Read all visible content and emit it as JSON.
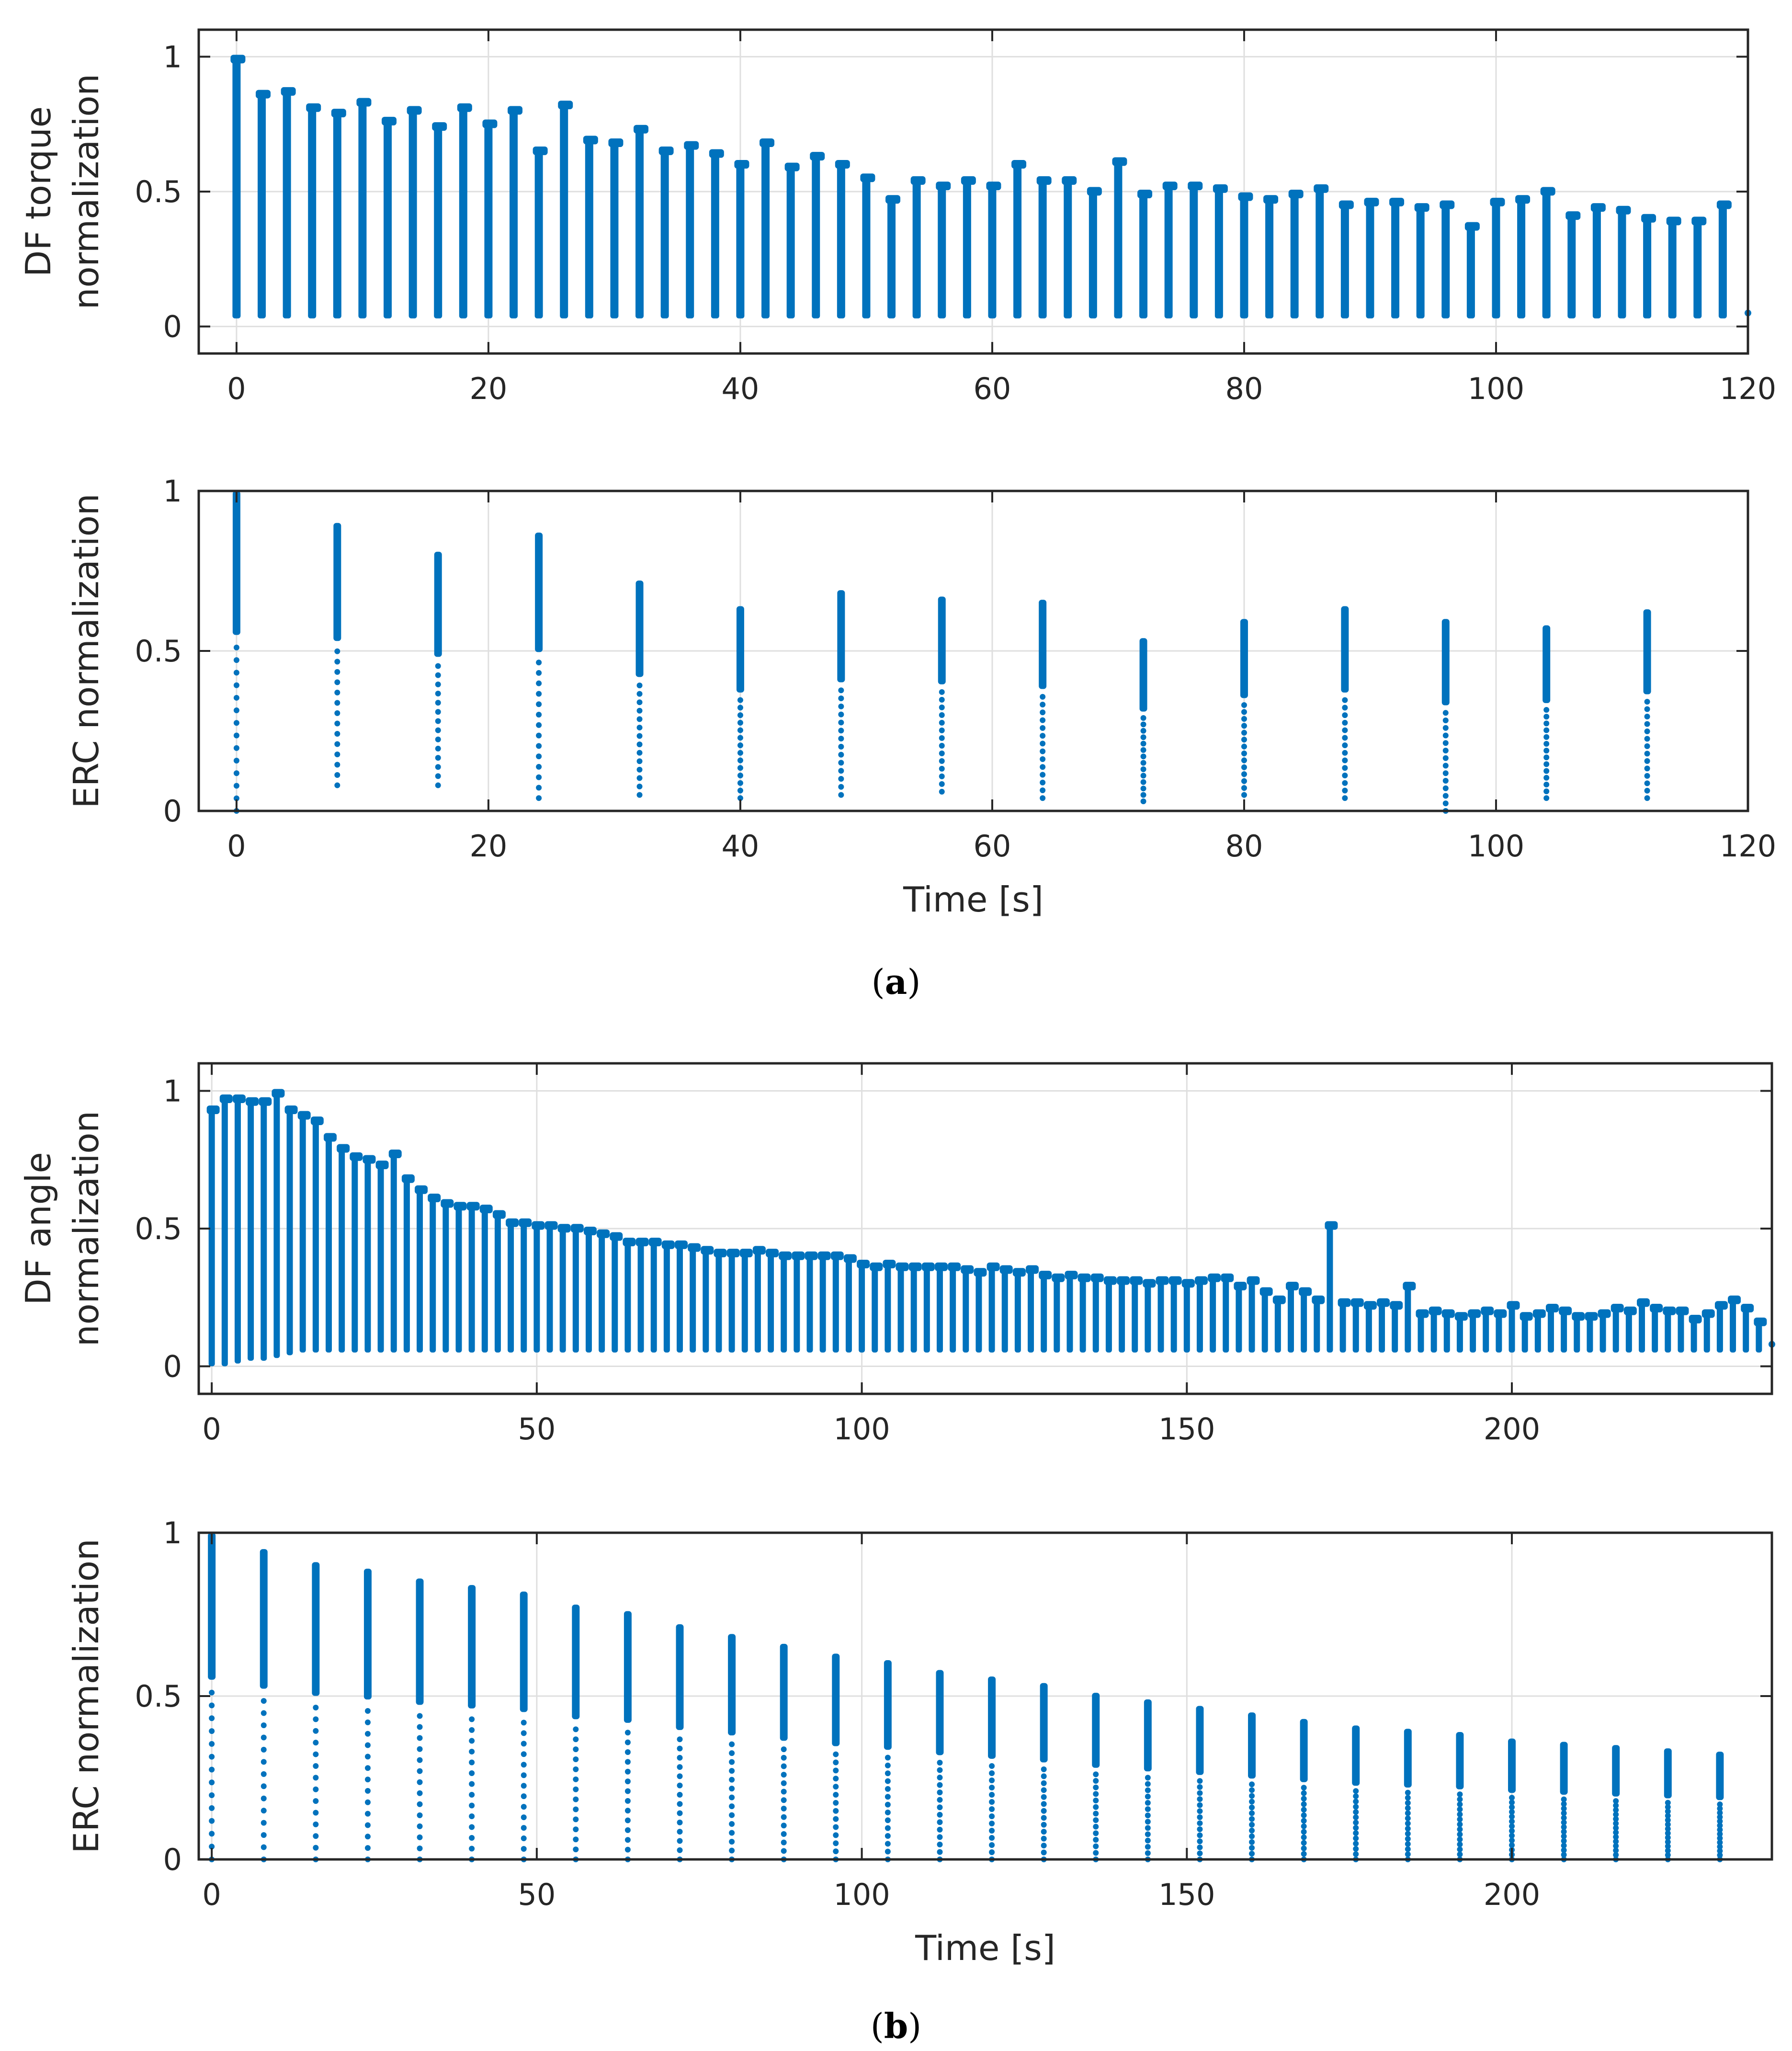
{
  "colors": {
    "series": "#0072BD",
    "grid": "#DFDFDF",
    "axis": "#262626"
  },
  "captions": {
    "a": {
      "open": "(",
      "letter": "a",
      "close": ")"
    },
    "b": {
      "open": "(",
      "letter": "b",
      "close": ")"
    }
  },
  "chart_data": [
    {
      "id": "a-top",
      "type": "scatter",
      "title": "",
      "xlabel": "",
      "ylabel_lines": [
        "DF torque",
        "normalization"
      ],
      "xlim": [
        -3,
        120
      ],
      "ylim": [
        -0.1,
        1.1
      ],
      "xticks": [
        0,
        20,
        40,
        60,
        80,
        100,
        120
      ],
      "yticks": [
        0,
        0.5,
        1
      ],
      "xtick_labels": [
        "0",
        "20",
        "40",
        "60",
        "80",
        "100",
        "120"
      ],
      "ytick_labels": [
        "0",
        "0.5",
        "1"
      ],
      "grid": true,
      "period": 2,
      "t0": 0,
      "low": 0.03,
      "peaks": [
        1.0,
        0.87,
        0.88,
        0.82,
        0.8,
        0.84,
        0.77,
        0.81,
        0.75,
        0.82,
        0.76,
        0.81,
        0.66,
        0.83,
        0.7,
        0.69,
        0.74,
        0.66,
        0.68,
        0.65,
        0.61,
        0.69,
        0.6,
        0.64,
        0.61,
        0.56,
        0.48,
        0.55,
        0.53,
        0.55,
        0.53,
        0.61,
        0.55,
        0.55,
        0.51,
        0.62,
        0.5,
        0.53,
        0.53,
        0.52,
        0.49,
        0.48,
        0.5,
        0.52,
        0.46,
        0.47,
        0.47,
        0.45,
        0.46,
        0.38,
        0.47,
        0.48,
        0.51,
        0.42,
        0.45,
        0.44,
        0.41,
        0.4,
        0.4,
        0.46
      ],
      "end_point": [
        120,
        0.05
      ]
    },
    {
      "id": "a-bottom",
      "type": "scatter",
      "title": "",
      "xlabel": "Time [s]",
      "ylabel_lines": [
        "ERC normalization"
      ],
      "xlim": [
        -3,
        120
      ],
      "ylim": [
        0,
        1
      ],
      "xticks": [
        0,
        20,
        40,
        60,
        80,
        100,
        120
      ],
      "yticks": [
        0,
        0.5,
        1
      ],
      "xtick_labels": [
        "0",
        "20",
        "40",
        "60",
        "80",
        "100",
        "120"
      ],
      "ytick_labels": [
        "0",
        "0.5",
        "1"
      ],
      "grid": true,
      "period": 8,
      "t0": 0,
      "peaks": [
        1.0,
        0.9,
        0.81,
        0.87,
        0.72,
        0.64,
        0.69,
        0.67,
        0.66,
        0.54,
        0.6,
        0.64,
        0.6,
        0.58,
        0.63
      ],
      "lows": [
        0.0,
        0.08,
        0.08,
        0.04,
        0.05,
        0.04,
        0.05,
        0.06,
        0.04,
        0.03,
        0.05,
        0.04,
        0.0,
        0.04,
        0.04
      ]
    },
    {
      "id": "b-top",
      "type": "scatter",
      "title": "",
      "xlabel": "",
      "ylabel_lines": [
        "DF angle",
        "normalization"
      ],
      "xlim": [
        -2,
        240
      ],
      "ylim": [
        -0.1,
        1.1
      ],
      "xticks": [
        0,
        50,
        100,
        150,
        200
      ],
      "yticks": [
        0,
        0.5,
        1
      ],
      "xtick_labels": [
        "0",
        "50",
        "100",
        "150",
        "200"
      ],
      "ytick_labels": [
        "0",
        "0.5",
        "1"
      ],
      "grid": true,
      "period": 2,
      "t0": 0,
      "peaks": [
        0.94,
        0.98,
        0.98,
        0.97,
        0.97,
        1.0,
        0.94,
        0.92,
        0.9,
        0.84,
        0.8,
        0.77,
        0.76,
        0.74,
        0.78,
        0.69,
        0.65,
        0.62,
        0.6,
        0.59,
        0.59,
        0.58,
        0.56,
        0.53,
        0.53,
        0.52,
        0.52,
        0.51,
        0.51,
        0.5,
        0.49,
        0.48,
        0.46,
        0.46,
        0.46,
        0.45,
        0.45,
        0.44,
        0.43,
        0.42,
        0.42,
        0.42,
        0.43,
        0.42,
        0.41,
        0.41,
        0.41,
        0.41,
        0.41,
        0.4,
        0.38,
        0.37,
        0.38,
        0.37,
        0.37,
        0.37,
        0.37,
        0.37,
        0.36,
        0.35,
        0.37,
        0.36,
        0.35,
        0.36,
        0.34,
        0.33,
        0.34,
        0.33,
        0.33,
        0.32,
        0.32,
        0.32,
        0.31,
        0.32,
        0.32,
        0.31,
        0.32,
        0.33,
        0.33,
        0.3,
        0.32,
        0.28,
        0.25,
        0.3,
        0.28,
        0.25,
        0.52,
        0.24,
        0.24,
        0.23,
        0.24,
        0.23,
        0.3,
        0.2,
        0.21,
        0.2,
        0.19,
        0.2,
        0.21,
        0.2,
        0.23,
        0.19,
        0.2,
        0.22,
        0.21,
        0.19,
        0.19,
        0.2,
        0.22,
        0.21,
        0.24,
        0.22,
        0.21,
        0.21,
        0.18,
        0.2,
        0.23,
        0.25,
        0.22,
        0.17
      ],
      "lows": [
        0.0,
        0.0,
        0.01,
        0.02,
        0.02,
        0.03,
        0.04,
        0.05,
        0.05,
        0.05,
        0.05,
        0.05,
        0.05,
        0.05,
        0.05,
        0.05,
        0.05,
        0.05,
        0.05,
        0.05,
        0.05,
        0.05,
        0.05,
        0.05,
        0.05,
        0.05,
        0.05,
        0.05,
        0.05,
        0.05,
        0.05,
        0.05,
        0.05,
        0.05,
        0.05,
        0.05,
        0.05,
        0.05,
        0.05,
        0.05,
        0.05,
        0.05,
        0.05,
        0.05,
        0.05,
        0.05,
        0.05,
        0.05,
        0.05,
        0.05,
        0.05,
        0.05,
        0.05,
        0.05,
        0.05,
        0.05,
        0.05,
        0.05,
        0.05,
        0.05,
        0.05,
        0.05,
        0.05,
        0.05,
        0.05,
        0.05,
        0.05,
        0.05,
        0.05,
        0.05,
        0.05,
        0.05,
        0.05,
        0.05,
        0.05,
        0.05,
        0.05,
        0.05,
        0.05,
        0.05,
        0.05,
        0.05,
        0.05,
        0.05,
        0.05,
        0.05,
        0.05,
        0.05,
        0.05,
        0.05,
        0.05,
        0.05,
        0.05,
        0.05,
        0.05,
        0.05,
        0.05,
        0.05,
        0.05,
        0.05,
        0.05,
        0.05,
        0.05,
        0.05,
        0.05,
        0.05,
        0.05,
        0.05,
        0.05,
        0.05,
        0.05,
        0.05,
        0.05,
        0.05,
        0.05,
        0.05,
        0.05,
        0.05,
        0.05,
        0.05
      ],
      "end_point": [
        240,
        0.08
      ]
    },
    {
      "id": "b-bottom",
      "type": "scatter",
      "title": "",
      "xlabel": "Time [s]",
      "ylabel_lines": [
        "ERC normalization"
      ],
      "xlim": [
        -2,
        240
      ],
      "ylim": [
        0,
        1
      ],
      "xticks": [
        0,
        50,
        100,
        150,
        200
      ],
      "yticks": [
        0,
        0.5,
        1
      ],
      "xtick_labels": [
        "0",
        "50",
        "100",
        "150",
        "200"
      ],
      "ytick_labels": [
        "0",
        "0.5",
        "1"
      ],
      "grid": true,
      "period": 8,
      "t0": 0,
      "low": 0.0,
      "peaks": [
        1.0,
        0.95,
        0.91,
        0.89,
        0.86,
        0.84,
        0.82,
        0.78,
        0.76,
        0.72,
        0.69,
        0.66,
        0.63,
        0.61,
        0.58,
        0.56,
        0.54,
        0.51,
        0.49,
        0.47,
        0.45,
        0.43,
        0.41,
        0.4,
        0.39,
        0.37,
        0.36,
        0.35,
        0.34,
        0.33
      ]
    }
  ]
}
